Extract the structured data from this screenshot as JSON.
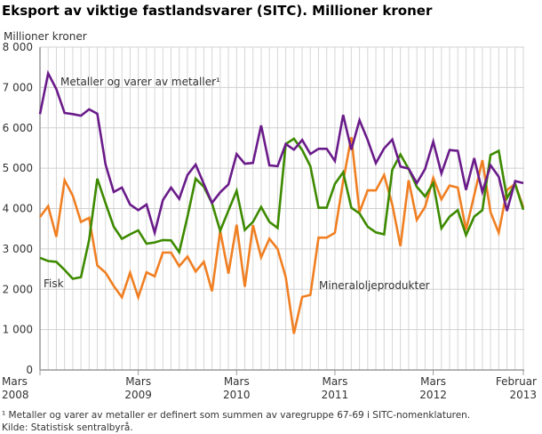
{
  "chart_data": {
    "type": "line",
    "title": "Eksport av viktige fastlandsvarer (SITC).  Millioner kroner",
    "ylabel": "Millioner kroner",
    "xlabel": "",
    "ylim": [
      0,
      8000
    ],
    "y_ticks": [
      "0",
      "1 000",
      "2 000",
      "3 000",
      "4 000",
      "5 000",
      "6 000",
      "7 000",
      "8 000"
    ],
    "x_start": "Mars 2008",
    "x_end": "Februar 2013",
    "x_tick_labels": [
      {
        "month": "Mars",
        "year": "2008",
        "index": 0
      },
      {
        "month": "Mars",
        "year": "2009",
        "index": 12
      },
      {
        "month": "Mars",
        "year": "2010",
        "index": 24
      },
      {
        "month": "Mars",
        "year": "2011",
        "index": 36
      },
      {
        "month": "Mars",
        "year": "2012",
        "index": 48
      },
      {
        "month": "Februar",
        "year": "2013",
        "index": 59
      }
    ],
    "grid": true,
    "series": [
      {
        "name": "Metaller og varer av metaller¹",
        "color": "#6a1b8a",
        "values": [
          6340,
          7350,
          6960,
          6370,
          6340,
          6300,
          6460,
          6350,
          5090,
          4410,
          4520,
          4100,
          3960,
          4100,
          3400,
          4210,
          4520,
          4240,
          4830,
          5090,
          4610,
          4140,
          4400,
          4600,
          5350,
          5110,
          5130,
          6060,
          5070,
          5050,
          5600,
          5460,
          5700,
          5350,
          5480,
          5480,
          5180,
          6320,
          5460,
          6190,
          5700,
          5125,
          5490,
          5710,
          5040,
          4990,
          4630,
          4980,
          5660,
          4870,
          5450,
          5430,
          4460,
          5250,
          4410,
          5070,
          4790,
          3940,
          4680,
          4630
        ]
      },
      {
        "name": "Fisk",
        "color": "#3d8a00",
        "values": [
          2780,
          2700,
          2680,
          2480,
          2260,
          2300,
          3220,
          4740,
          4130,
          3550,
          3250,
          3360,
          3460,
          3130,
          3160,
          3220,
          3210,
          2920,
          3800,
          4740,
          4540,
          4130,
          3450,
          3950,
          4440,
          3470,
          3670,
          4040,
          3670,
          3520,
          5600,
          5730,
          5450,
          5050,
          4020,
          4020,
          4610,
          4900,
          4020,
          3880,
          3550,
          3410,
          3360,
          4960,
          5340,
          4980,
          4540,
          4300,
          4630,
          3510,
          3800,
          3960,
          3340,
          3800,
          3960,
          5330,
          5430,
          4260,
          4610,
          3970
        ]
      },
      {
        "name": "Mineraloljeprodukter",
        "color": "#f07f22",
        "values": [
          3790,
          4060,
          3300,
          4700,
          4320,
          3670,
          3770,
          2590,
          2410,
          2080,
          1800,
          2410,
          1800,
          2420,
          2320,
          2910,
          2910,
          2570,
          2810,
          2440,
          2680,
          1950,
          3450,
          2390,
          3600,
          2060,
          3590,
          2790,
          3250,
          3000,
          2300,
          900,
          1810,
          1860,
          3280,
          3280,
          3400,
          4680,
          5770,
          3910,
          4450,
          4450,
          4830,
          4100,
          3070,
          4700,
          3720,
          4040,
          4760,
          4230,
          4570,
          4520,
          3470,
          4330,
          5200,
          3910,
          3400,
          4460,
          4610,
          4020
        ]
      }
    ],
    "footnote": "¹ Metaller og varer av metaller er definert som summen av varegruppe 67-69 i SITC-nomenklaturen.",
    "source": "Kilde: Statistisk sentralbyrå."
  }
}
